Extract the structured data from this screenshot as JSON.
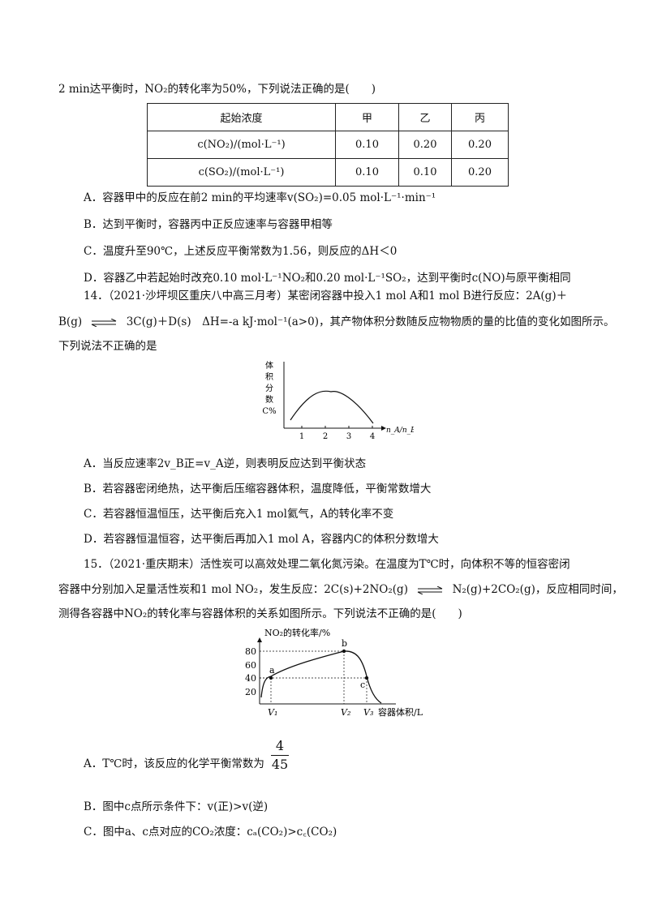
{
  "intro_line": "2 min达平衡时，NO₂的转化率为50%，下列说法正确的是(　　)",
  "table": {
    "headers": [
      "起始浓度",
      "甲",
      "乙",
      "丙"
    ],
    "rows": [
      [
        "c(NO₂)/(mol·L⁻¹)",
        "0.10",
        "0.20",
        "0.20"
      ],
      [
        "c(SO₂)/(mol·L⁻¹)",
        "0.10",
        "0.10",
        "0.20"
      ]
    ]
  },
  "q13_options": [
    "A．容器甲中的反应在前2 min的平均速率v(SO₂)=0.05 mol·L⁻¹·min⁻¹",
    "B．达到平衡时，容器丙中正反应速率与容器甲相等",
    "C．温度升至90℃，上述反应平衡常数为1.56，则反应的ΔH＜0",
    "D．容器乙中若起始时改充0.10 mol·L⁻¹NO₂和0.20 mol·L⁻¹SO₂，达到平衡时c(NO)与原平衡相同"
  ],
  "q14": {
    "line1": "14．（2021·沙坪坝区重庆八中高三月考）某密闭容器中投入1 mol A和1 mol B进行反应：2A(g)＋",
    "line2_left": "B(g)",
    "line2_right": "3C(g)＋D(s)　ΔH=-a kJ·mol⁻¹(a>0)，其产物体积分数随反应物物质的量的比值的变化如图所示。",
    "line3": "下列说法不正确的是",
    "options": [
      "A．当反应速率2v_B正=v_A逆，则表明反应达到平衡状态",
      "B．若容器密闭绝热，达平衡后压缩容器体积，温度降低，平衡常数增大",
      "C．若容器恒温恒压，达平衡后充入1 mol氦气，A的转化率不变",
      "D．若容器恒温恒容，达平衡后再加入1 mol A，容器内C的体积分数增大"
    ]
  },
  "chart1": {
    "ylabel_lines": [
      "体",
      "积",
      "分",
      "数",
      "C%"
    ],
    "xlabel": "n_A/n_B",
    "x_ticks": [
      "1",
      "2",
      "3",
      "4"
    ]
  },
  "q15": {
    "line1": "15．（2021·重庆期末）活性炭可以高效处理二氧化氮污染。在温度为T℃时，向体积不等的恒容密闭",
    "line2_left": "容器中分别加入足量活性炭和1 mol NO₂，发生反应：2C(s)+2NO₂(g)",
    "line2_right": "N₂(g)+2CO₂(g)，反应相同时间，",
    "line3": "测得各容器中NO₂的转化率与容器体积的关系如图所示。下列说法不正确的是(　　)",
    "optA_prefix": "A．T℃时，该反应的化学平衡常数为",
    "optA_num": "4",
    "optA_den": "45",
    "optB": "B．图中c点所示条件下：v(正)>v(逆)",
    "optC": "C．图中a、c点对应的CO₂浓度：cₐ(CO₂)>c꜀(CO₂)"
  },
  "chart2": {
    "ylabel": "NO₂的转化率/%",
    "xlabel": "容器体积/L",
    "y_ticks": [
      "80",
      "60",
      "40",
      "20"
    ],
    "x_ticks": [
      "V₁",
      "V₂",
      "V₃"
    ],
    "points": [
      {
        "label": "a",
        "x": "V₁",
        "y": 40
      },
      {
        "label": "b",
        "x": "V₂",
        "y": 80
      },
      {
        "label": "c",
        "x": "V₃",
        "y": 40
      }
    ]
  }
}
